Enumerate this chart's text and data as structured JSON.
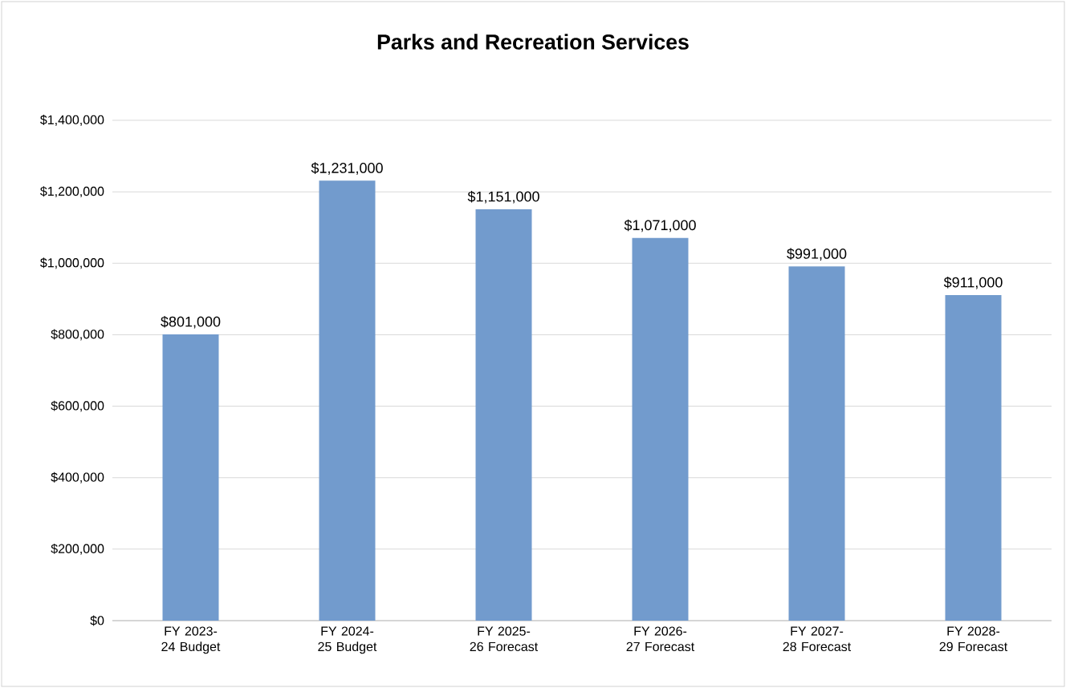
{
  "chart_data": {
    "type": "bar",
    "title": "Parks and Recreation Services",
    "categories": [
      "FY 2023-24 Budget",
      "FY 2024-25 Budget",
      "FY 2025-26 Forecast",
      "FY 2026-27 Forecast",
      "FY 2027-28 Forecast",
      "FY 2028-29 Forecast"
    ],
    "values": [
      801000,
      1231000,
      1151000,
      1071000,
      991000,
      911000
    ],
    "value_labels": [
      "$801,000",
      "$1,231,000",
      "$1,151,000",
      "$1,071,000",
      "$991,000",
      "$911,000"
    ],
    "color": "#729bcd",
    "ylim": [
      0,
      1400000
    ],
    "yticks": [
      {
        "value": 0,
        "label": "$0"
      },
      {
        "value": 200000,
        "label": "$200,000"
      },
      {
        "value": 400000,
        "label": "$400,000"
      },
      {
        "value": 600000,
        "label": "$600,000"
      },
      {
        "value": 800000,
        "label": "$800,000"
      },
      {
        "value": 1000000,
        "label": "$1,000,000"
      },
      {
        "value": 1200000,
        "label": "$1,200,000"
      },
      {
        "value": 1400000,
        "label": "$1,400,000"
      }
    ],
    "grid": "y"
  }
}
